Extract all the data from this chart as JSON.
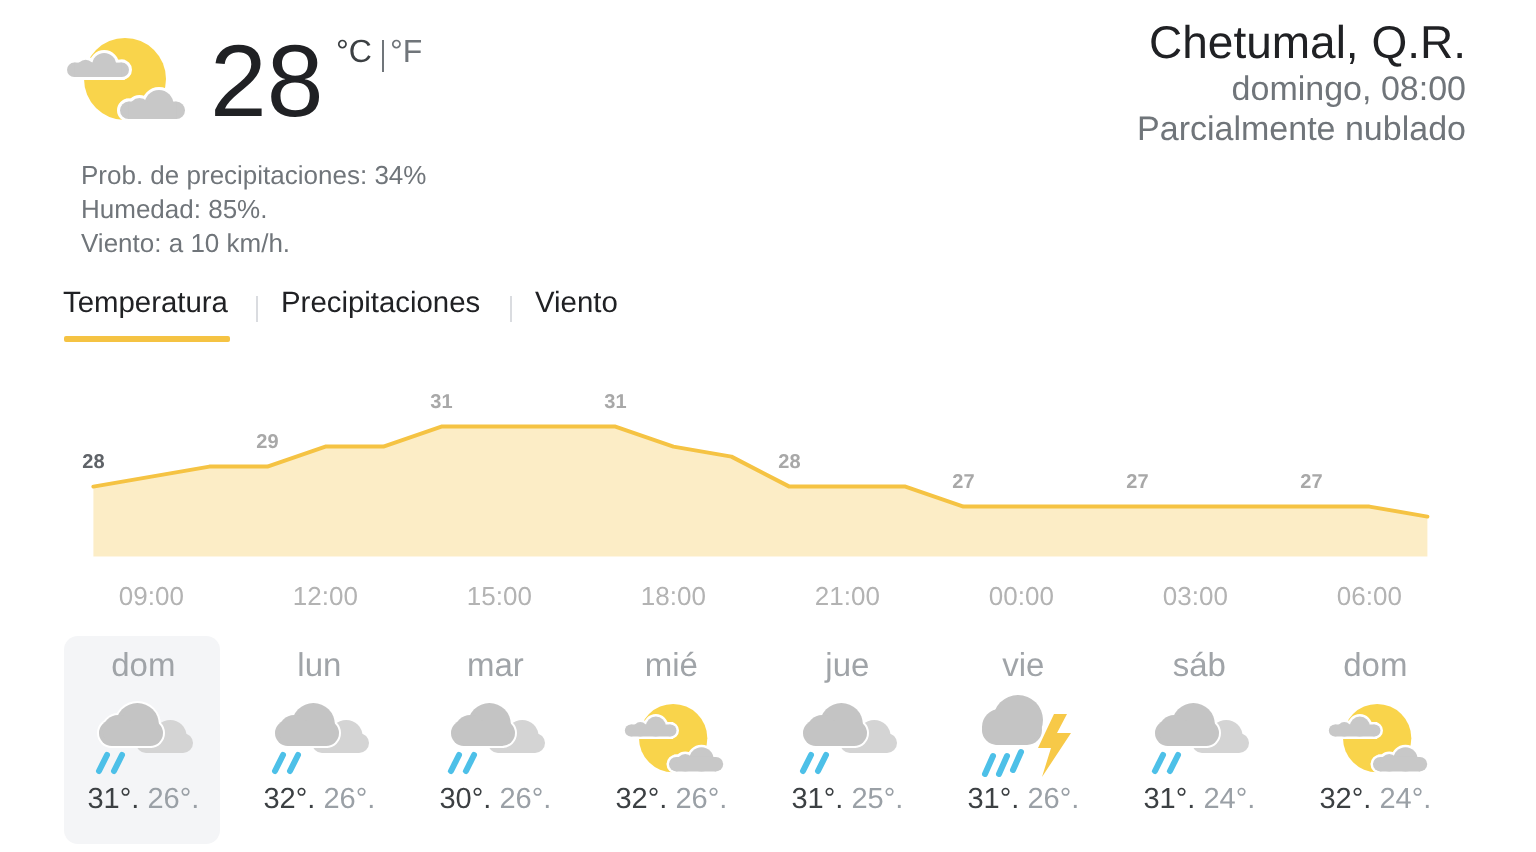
{
  "chart_data": [
    {
      "type": "other",
      "title": "Chetumal, Q.R.",
      "subtitle": "domingo, 08:00",
      "annotations": [
        "28",
        "°C",
        "°F",
        "Parcialmente nublado",
        "Prob. de precipitaciones: 34%",
        "Humedad: 85%.",
        "Viento: a 10 km/h."
      ]
    },
    {
      "type": "area",
      "categories": [
        null,
        "09:00",
        null,
        null,
        "12:00",
        null,
        null,
        "15:00",
        null,
        null,
        "18:00",
        null,
        null,
        "21:00",
        null,
        null,
        "00:00",
        null,
        null,
        "03:00",
        null,
        null,
        "06:00",
        null
      ],
      "values": [
        28,
        28.5,
        29,
        29,
        30,
        30,
        31,
        31,
        31,
        31,
        30,
        29.5,
        28,
        28,
        28,
        27,
        27,
        27,
        27,
        27,
        27,
        27,
        27,
        26.5
      ],
      "value_labels": [
        "28",
        null,
        null,
        "29",
        null,
        null,
        "31",
        null,
        null,
        "31",
        null,
        null,
        "28",
        null,
        null,
        "27",
        null,
        null,
        "27",
        null,
        null,
        "27",
        null,
        null
      ],
      "color": "#f5c343",
      "tick_labels": "x",
      "annotations": [
        "Temperatura",
        "Precipitaciones",
        "Viento"
      ]
    },
    {
      "type": "other",
      "categories": [
        "dom",
        "lun",
        "mar",
        "mié",
        "jue",
        "vie",
        "sáb",
        "dom"
      ],
      "annotations": [
        "31°.",
        "26°.",
        "32°.",
        "26°.",
        "30°.",
        "26°.",
        "32°.",
        "26°.",
        "31°.",
        "25°.",
        "31°.",
        "26°.",
        "31°.",
        "24°.",
        "32°.",
        "24°."
      ]
    }
  ]
}
